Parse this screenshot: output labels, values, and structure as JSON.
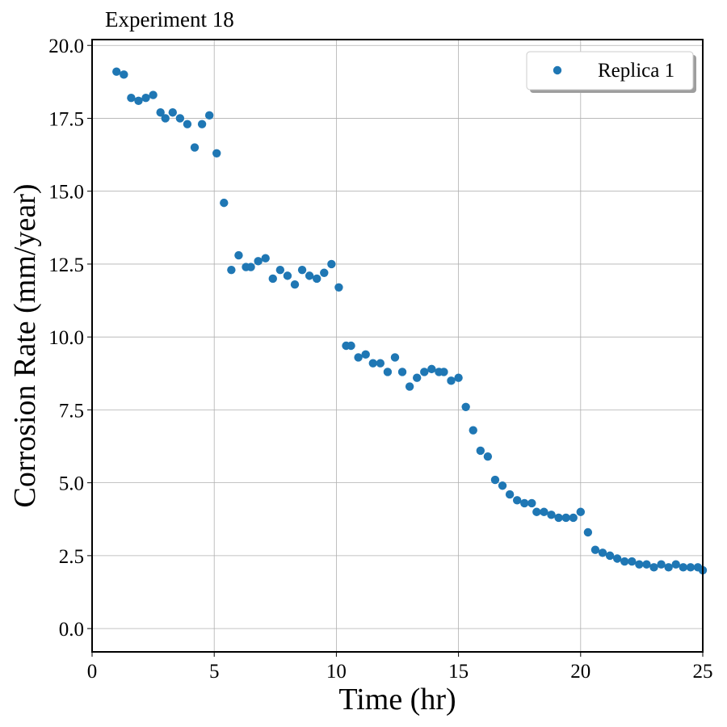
{
  "chart_data": {
    "type": "scatter",
    "title": "Experiment 18",
    "xlabel": "Time (hr)",
    "ylabel": "Corrosion Rate (mm/year)",
    "xlim": [
      0,
      25
    ],
    "ylim": [
      -0.8,
      20.2
    ],
    "xticks": [
      0,
      5,
      10,
      15,
      20,
      25
    ],
    "yticks": [
      0.0,
      2.5,
      5.0,
      7.5,
      10.0,
      12.5,
      15.0,
      17.5,
      20.0
    ],
    "xtick_labels": [
      "0",
      "5",
      "10",
      "15",
      "20",
      "25"
    ],
    "ytick_labels": [
      "0.0",
      "2.5",
      "5.0",
      "7.5",
      "10.0",
      "12.5",
      "15.0",
      "17.5",
      "20.0"
    ],
    "grid": true,
    "legend_position": "top-right",
    "series": [
      {
        "name": "Replica 1",
        "color": "#1f77b4",
        "x": [
          1.0,
          1.3,
          1.6,
          1.9,
          2.2,
          2.5,
          2.8,
          3.0,
          3.3,
          3.6,
          3.9,
          4.2,
          4.5,
          4.8,
          5.1,
          5.4,
          5.7,
          6.0,
          6.3,
          6.5,
          6.8,
          7.1,
          7.4,
          7.7,
          8.0,
          8.3,
          8.6,
          8.9,
          9.2,
          9.5,
          9.8,
          10.1,
          10.4,
          10.6,
          10.9,
          11.2,
          11.5,
          11.8,
          12.1,
          12.4,
          12.7,
          13.0,
          13.3,
          13.6,
          13.9,
          14.2,
          14.4,
          14.7,
          15.0,
          15.3,
          15.6,
          15.9,
          16.2,
          16.5,
          16.8,
          17.1,
          17.4,
          17.7,
          18.0,
          18.2,
          18.5,
          18.8,
          19.1,
          19.4,
          19.7,
          20.0,
          20.3,
          20.6,
          20.9,
          21.2,
          21.5,
          21.8,
          22.1,
          22.4,
          22.7,
          23.0,
          23.3,
          23.6,
          23.9,
          24.2,
          24.5,
          24.8,
          25.0
        ],
        "y": [
          19.1,
          19.0,
          18.2,
          18.1,
          18.2,
          18.3,
          17.7,
          17.5,
          17.7,
          17.5,
          17.3,
          16.5,
          17.3,
          17.6,
          16.3,
          14.6,
          12.3,
          12.8,
          12.4,
          12.4,
          12.6,
          12.7,
          12.0,
          12.3,
          12.1,
          11.8,
          12.3,
          12.1,
          12.0,
          12.2,
          12.5,
          11.7,
          9.7,
          9.7,
          9.3,
          9.4,
          9.1,
          9.1,
          8.8,
          9.3,
          8.8,
          8.3,
          8.6,
          8.8,
          8.9,
          8.8,
          8.8,
          8.5,
          8.6,
          7.6,
          6.8,
          6.1,
          5.9,
          5.1,
          4.9,
          4.6,
          4.4,
          4.3,
          4.3,
          4.0,
          4.0,
          3.9,
          3.8,
          3.8,
          3.8,
          4.0,
          3.3,
          2.7,
          2.6,
          2.5,
          2.4,
          2.3,
          2.3,
          2.2,
          2.2,
          2.1,
          2.2,
          2.1,
          2.2,
          2.1,
          2.1,
          2.1,
          2.0
        ]
      }
    ]
  }
}
